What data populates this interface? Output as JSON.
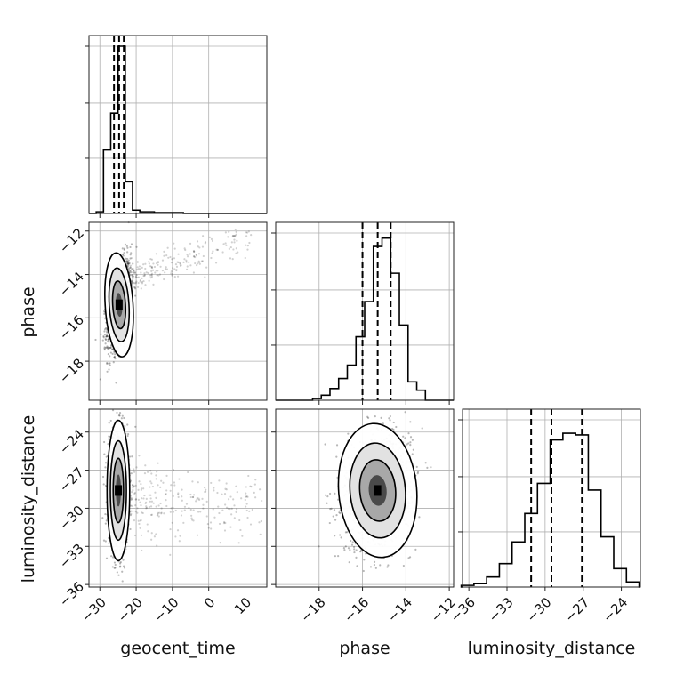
{
  "chart_data": {
    "type": "corner",
    "parameters": [
      "geocent_time",
      "phase",
      "luminosity_distance"
    ],
    "grid": true,
    "panels": [
      {
        "id": "hist-geocent_time",
        "kind": "histogram",
        "param": "geocent_time",
        "xlim": [
          -33,
          16
        ],
        "ylim": [
          0,
          1
        ],
        "bin_edges": [
          -31,
          -29,
          -27,
          -25,
          -23,
          -21,
          -19,
          -17,
          -15,
          -13,
          -11,
          -9,
          -7,
          -5,
          -3
        ],
        "counts": [
          0.01,
          0.38,
          0.6,
          1.0,
          0.19,
          0.02,
          0.01,
          0.01,
          0.005,
          0.005,
          0.005,
          0.005,
          0,
          0
        ],
        "quantiles": [
          -26.1,
          -24.7,
          -23.4
        ],
        "xticks": [
          -30,
          -20,
          -10,
          0,
          10
        ]
      },
      {
        "id": "hist-phase",
        "kind": "histogram",
        "param": "phase",
        "xlim": [
          -20,
          -11.8
        ],
        "ylim": [
          0,
          1
        ],
        "bin_edges": [
          -18.3,
          -17.9,
          -17.5,
          -17.1,
          -16.7,
          -16.3,
          -15.9,
          -15.5,
          -15.1,
          -14.7,
          -14.3,
          -13.9,
          -13.5,
          -13.1
        ],
        "counts": [
          0.01,
          0.03,
          0.07,
          0.13,
          0.21,
          0.38,
          0.59,
          0.92,
          0.97,
          0.76,
          0.45,
          0.11,
          0.06
        ],
        "quantiles": [
          -16.0,
          -15.3,
          -14.7
        ],
        "xticks": [
          -18,
          -16,
          -14,
          -12
        ]
      },
      {
        "id": "hist-luminosity_distance",
        "kind": "histogram",
        "param": "luminosity_distance",
        "xlim": [
          -36.5,
          -22.5
        ],
        "ylim": [
          0,
          1
        ],
        "bin_edges": [
          -36.6,
          -35.6,
          -34.6,
          -33.6,
          -32.6,
          -31.6,
          -30.6,
          -29.6,
          -28.6,
          -27.6,
          -26.6,
          -25.6,
          -24.6,
          -23.6,
          -22.6
        ],
        "counts": [
          0.01,
          0.02,
          0.06,
          0.14,
          0.27,
          0.44,
          0.62,
          0.88,
          0.92,
          0.91,
          0.58,
          0.3,
          0.11,
          0.03
        ],
        "quantiles": [
          -31.1,
          -29.5,
          -27.1
        ],
        "xticks": [
          -36,
          -33,
          -30,
          -27,
          -24
        ]
      },
      {
        "id": "density-geocent_time-phase",
        "kind": "density",
        "x": "geocent_time",
        "y": "phase",
        "xlim": [
          -33,
          16
        ],
        "ylim": [
          -19.8,
          -11.6
        ],
        "center": [
          -24.7,
          -15.4
        ],
        "spread": [
          1.6,
          1.0
        ],
        "rho": 0.5,
        "tail": {
          "from": [
            -24,
            -14.4
          ],
          "to": [
            12,
            -12.2
          ],
          "scatter": [
            4,
            0.6
          ]
        },
        "xticks": [
          -30,
          -20,
          -10,
          0,
          10
        ],
        "yticks": [
          -18,
          -16,
          -14,
          -12
        ]
      },
      {
        "id": "density-geocent_time-luminosity_distance",
        "kind": "density",
        "x": "geocent_time",
        "y": "luminosity_distance",
        "xlim": [
          -33,
          16
        ],
        "ylim": [
          -36.2,
          -22.2
        ],
        "center": [
          -24.9,
          -28.6
        ],
        "spread": [
          1.3,
          2.3
        ],
        "rho": 0.0,
        "tail": {
          "from": [
            -22,
            -29
          ],
          "to": [
            14,
            -30
          ],
          "scatter": [
            6,
            2.2
          ]
        },
        "xticks": [
          -30,
          -20,
          -10,
          0,
          10
        ],
        "yticks": [
          -36,
          -33,
          -30,
          -27,
          -24
        ]
      },
      {
        "id": "density-phase-luminosity_distance",
        "kind": "density",
        "x": "phase",
        "y": "luminosity_distance",
        "xlim": [
          -20,
          -11.8
        ],
        "ylim": [
          -36.2,
          -22.2
        ],
        "center": [
          -15.3,
          -28.6
        ],
        "spread": [
          0.75,
          2.2
        ],
        "rho": 0.15,
        "tail": null,
        "xticks": [
          -18,
          -16,
          -14,
          -12
        ],
        "yticks": [
          -36,
          -33,
          -30,
          -27,
          -24
        ]
      }
    ],
    "axis_labels": {
      "x": [
        "geocent_time",
        "phase",
        "luminosity_distance"
      ],
      "y": [
        "phase",
        "luminosity_distance"
      ]
    }
  }
}
